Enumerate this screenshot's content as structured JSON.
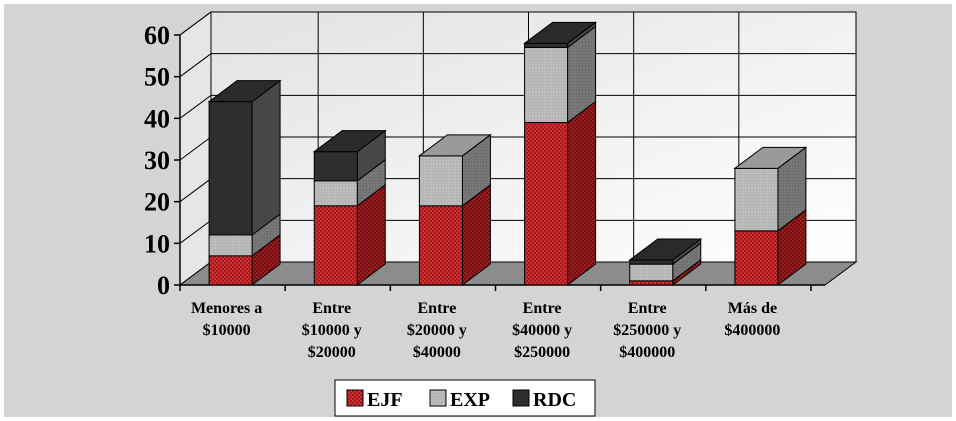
{
  "chart_data": {
    "type": "bar",
    "stacked": true,
    "three_d": true,
    "categories": [
      [
        "Menores a",
        "$10000"
      ],
      [
        "Entre",
        "$10000 y",
        "$20000"
      ],
      [
        "Entre",
        "$20000 y",
        "$40000"
      ],
      [
        "Entre",
        "$40000 y",
        "$250000"
      ],
      [
        "Entre",
        "$250000 y",
        "$400000"
      ],
      [
        "Más de",
        "$400000"
      ]
    ],
    "series": [
      {
        "name": "EJF",
        "values": [
          7,
          19,
          19,
          39,
          1,
          13
        ]
      },
      {
        "name": "EXP",
        "values": [
          5,
          6,
          12,
          18,
          4,
          15
        ]
      },
      {
        "name": "RDC",
        "values": [
          32,
          7,
          0,
          1,
          1,
          0
        ]
      }
    ],
    "ylim": [
      0,
      60
    ],
    "yticks": [
      0,
      10,
      20,
      30,
      40,
      50,
      60
    ],
    "grid": true,
    "legend_position": "bottom",
    "colors": {
      "EJF": "#b01418",
      "EXP": "#a9a9a9",
      "RDC": "#2e2e2e",
      "background": "#d4d4d4",
      "wall": "#f4f4f4",
      "floor": "#8c8c8c"
    }
  }
}
